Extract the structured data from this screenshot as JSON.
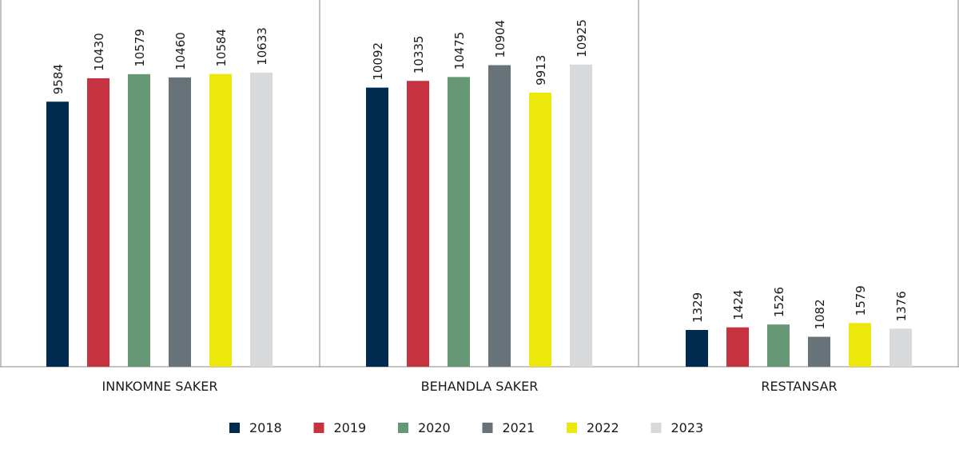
{
  "chart_data": {
    "type": "bar",
    "title": "",
    "xlabel": "",
    "ylabel": "",
    "ylim": [
      0,
      13260
    ],
    "grid": false,
    "legend_position": "bottom",
    "categories": [
      "INNKOMNE SAKER",
      "BEHANDLA SAKER",
      "RESTANSAR"
    ],
    "series": [
      {
        "name": "2018",
        "color": "#002b4e",
        "values": [
          9584,
          10092,
          1329
        ]
      },
      {
        "name": "2019",
        "color": "#c73241",
        "values": [
          10430,
          10335,
          1424
        ]
      },
      {
        "name": "2020",
        "color": "#679875",
        "values": [
          10579,
          10475,
          1526
        ]
      },
      {
        "name": "2021",
        "color": "#677279",
        "values": [
          10460,
          10904,
          1082
        ]
      },
      {
        "name": "2022",
        "color": "#ece80c",
        "values": [
          10584,
          9913,
          1579
        ]
      },
      {
        "name": "2023",
        "color": "#d8d9db",
        "values": [
          10633,
          10925,
          1376
        ]
      }
    ]
  }
}
